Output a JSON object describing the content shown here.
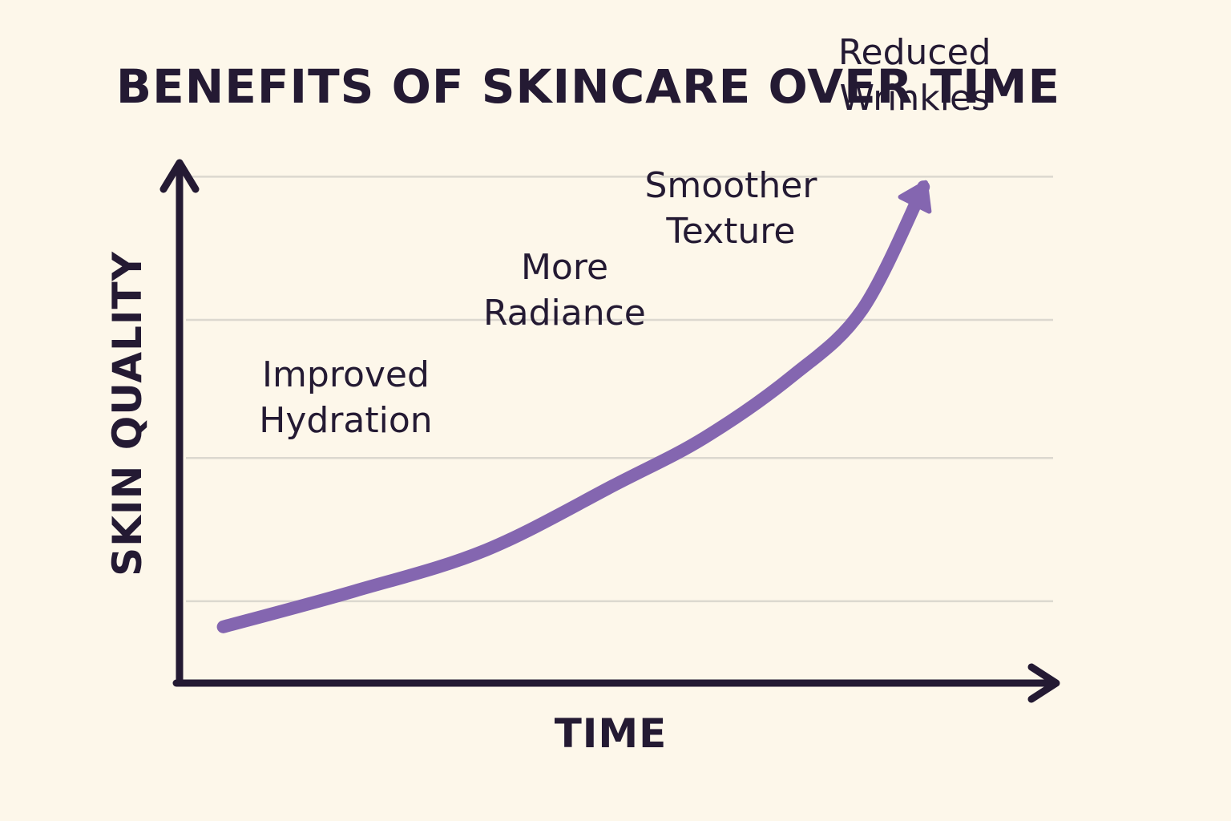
{
  "chart_data": {
    "type": "line",
    "title": "BENEFITS OF SKINCARE OVER TIME",
    "xlabel": "TIME",
    "ylabel": "SKIN QUALITY",
    "xlim": [
      0,
      100
    ],
    "ylim": [
      0,
      100
    ],
    "grid": true,
    "grid_y_values": [
      16,
      44,
      71,
      99
    ],
    "series": [
      {
        "name": "Skin quality",
        "color": "#8466b0",
        "arrow_end": true,
        "x": [
          5,
          20,
          35,
          50,
          60,
          70,
          78,
          85
        ],
        "y": [
          11,
          18,
          26,
          39,
          48,
          60,
          73,
          97
        ]
      }
    ],
    "annotations": [
      {
        "lines": [
          "Improved",
          "Hydration"
        ],
        "x": 19,
        "y": 58
      },
      {
        "lines": [
          "More",
          "Radiance"
        ],
        "x": 44,
        "y": 79
      },
      {
        "lines": [
          "Smoother",
          "Texture"
        ],
        "x": 63,
        "y": 95
      },
      {
        "lines": [
          "Reduced",
          "Wrinkles"
        ],
        "x": 84,
        "y": 121
      }
    ],
    "colors": {
      "background": "#fdf7ea",
      "axis": "#241a33",
      "grid": "#dcd8cf",
      "text": "#241a33"
    }
  }
}
